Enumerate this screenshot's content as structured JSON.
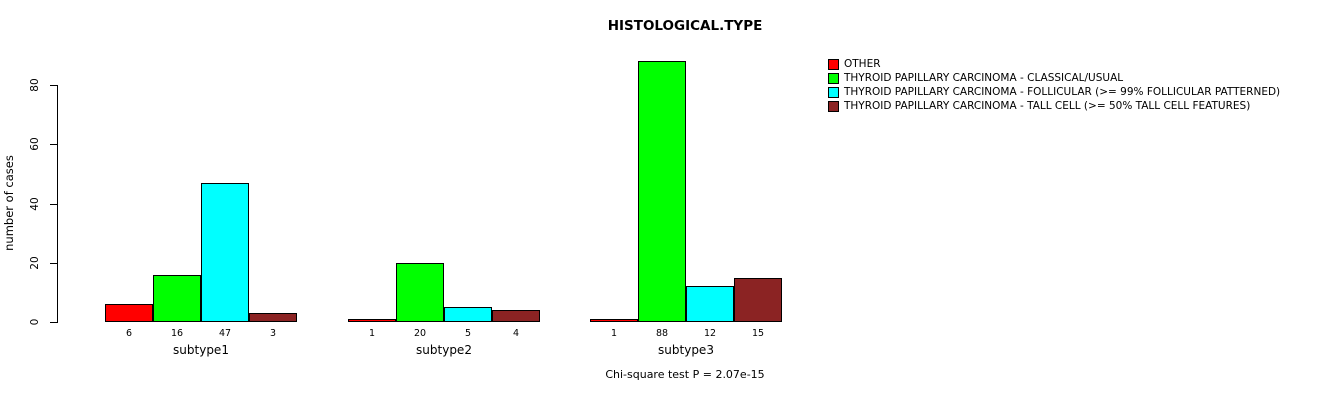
{
  "chart_data": {
    "type": "bar",
    "title": "HISTOLOGICAL.TYPE",
    "ylabel": "number of cases",
    "xlabel": "",
    "yticks": [
      0,
      20,
      40,
      60,
      80
    ],
    "ylim": [
      0,
      88
    ],
    "grid": false,
    "legend_position": "top-right",
    "categories": [
      "subtype1",
      "subtype2",
      "subtype3"
    ],
    "series": [
      {
        "name": "OTHER",
        "color": "#ff0000",
        "values": [
          6,
          1,
          1
        ]
      },
      {
        "name": "THYROID PAPILLARY CARCINOMA - CLASSICAL/USUAL",
        "color": "#00ff00",
        "values": [
          16,
          20,
          88
        ]
      },
      {
        "name": "THYROID PAPILLARY CARCINOMA - FOLLICULAR (>= 99% FOLLICULAR PATTERNED)",
        "color": "#00ffff",
        "values": [
          47,
          5,
          12
        ]
      },
      {
        "name": "THYROID PAPILLARY CARCINOMA - TALL CELL (>= 50% TALL CELL FEATURES)",
        "color": "#8b2323",
        "values": [
          3,
          4,
          15
        ]
      }
    ],
    "annotation": "Chi-square test P = 2.07e-15"
  }
}
